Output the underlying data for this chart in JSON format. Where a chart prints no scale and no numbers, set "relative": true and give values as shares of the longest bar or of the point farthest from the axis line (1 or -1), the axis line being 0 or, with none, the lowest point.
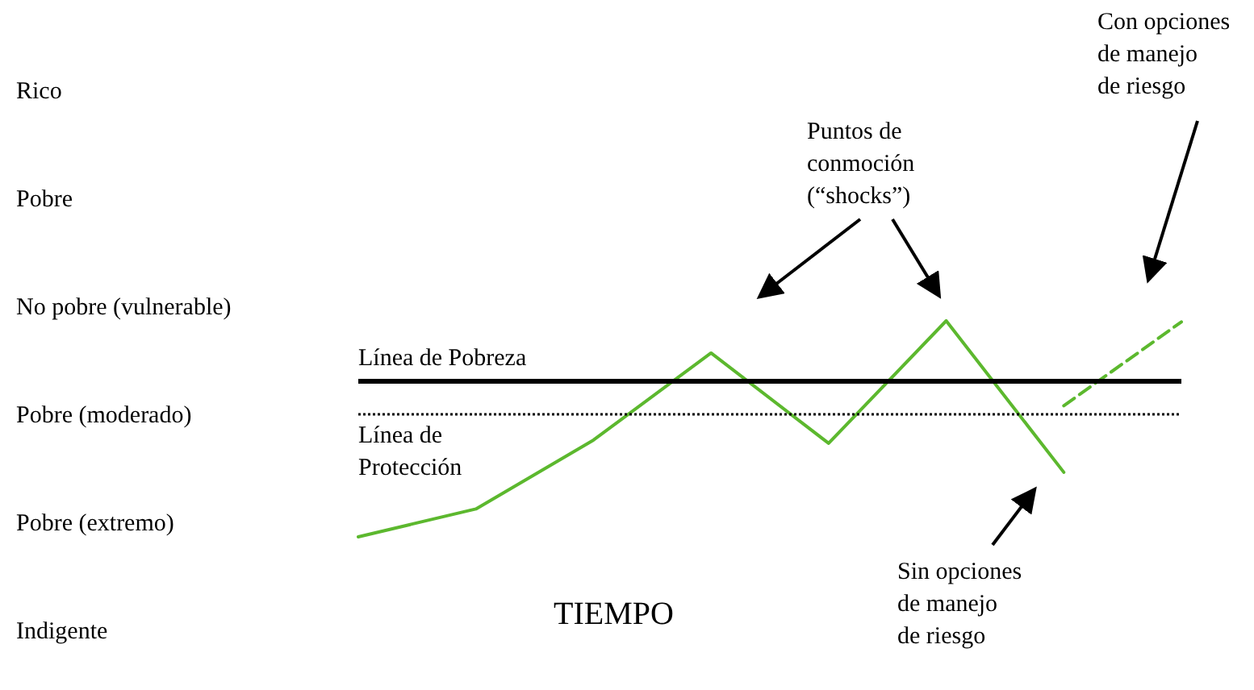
{
  "chart_data": {
    "type": "line",
    "relative": true,
    "xlabel": "TIEMPO",
    "categories": [
      null,
      null,
      null,
      null,
      null,
      null,
      null,
      null
    ],
    "series": [
      {
        "color": "#5cb82e",
        "values": [
          0,
          0.129,
          0.448,
          0.851,
          0.433,
          1,
          0.299,
          null
        ],
        "line_style": "solid"
      },
      {
        "color": "#5cb82e",
        "values": [
          null,
          null,
          null,
          null,
          null,
          null,
          0.607,
          0.995
        ],
        "line_style": "dashed"
      }
    ],
    "marker": "none",
    "ref_lines": [
      {
        "axis": "y",
        "value": 0.716,
        "label": "Línea de Pobreza",
        "color": "#000000",
        "line_style": "solid"
      },
      {
        "axis": "y",
        "value": 0.567,
        "label": "Línea de\nProtección",
        "color": "#000000",
        "line_style": "dotted"
      }
    ],
    "annotations": [
      "Puntos de\nconmoción\n(“shocks”)",
      "Con opciones\nde manejo\nde riesgo",
      "Sin opciones\nde manejo\nde riesgo",
      "Rico",
      "Pobre",
      "No pobre (vulnerable)",
      "Pobre (moderado)",
      "Pobre (extremo)",
      "Indigente"
    ]
  }
}
